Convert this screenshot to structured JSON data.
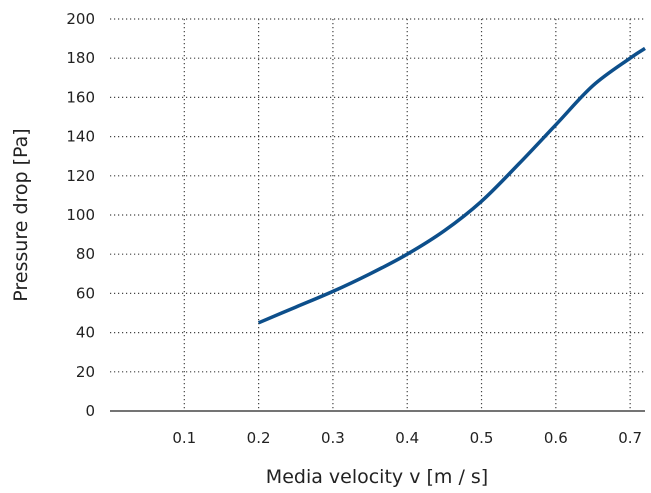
{
  "chart_data": {
    "type": "line",
    "title": "",
    "xlabel": "Media velocity v [m / s]",
    "ylabel": "Pressure drop [Pa]",
    "xlim": [
      0,
      0.72
    ],
    "ylim": [
      0,
      200
    ],
    "x_ticks": [
      0.1,
      0.2,
      0.3,
      0.4,
      0.5,
      0.6,
      0.7
    ],
    "x_tick_labels": [
      "0.1",
      "0.2",
      "0.3",
      "0.4",
      "0.5",
      "0.6",
      "0.7"
    ],
    "y_ticks": [
      0,
      20,
      40,
      60,
      80,
      100,
      120,
      140,
      160,
      180,
      200
    ],
    "y_tick_labels": [
      "0",
      "20",
      "40",
      "60",
      "80",
      "100",
      "120",
      "140",
      "160",
      "180",
      "200"
    ],
    "grid": "dotted",
    "line_color": "#0d4f8b",
    "series": [
      {
        "x": [
          0.2,
          0.25,
          0.3,
          0.35,
          0.4,
          0.45,
          0.5,
          0.55,
          0.6,
          0.65,
          0.7,
          0.72
        ],
        "values": [
          45,
          53,
          61,
          70,
          80,
          92,
          107,
          126,
          146,
          166,
          180,
          185
        ]
      }
    ]
  }
}
